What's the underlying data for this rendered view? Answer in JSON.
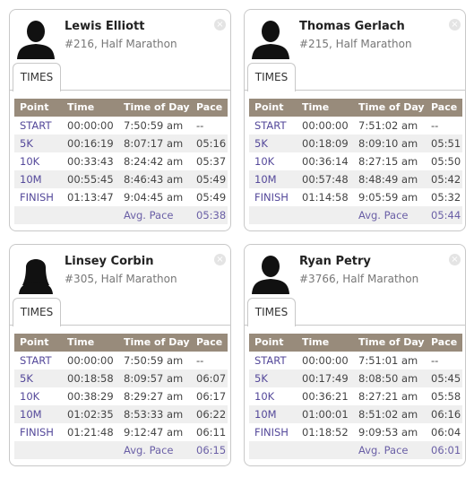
{
  "cards": [
    {
      "name": "Lewis Elliott",
      "event": "#216, Half Marathon",
      "tab": "TIMES",
      "table": {
        "header": [
          "Point",
          "Time",
          "Time of Day",
          "Pace"
        ],
        "rows": [
          [
            "START",
            "00:00:00",
            "7:50:59 am",
            "--"
          ],
          [
            "5K",
            "00:16:19",
            "8:07:17 am",
            "05:16"
          ],
          [
            "10K",
            "00:33:43",
            "8:24:42 am",
            "05:37"
          ],
          [
            "10M",
            "00:55:45",
            "8:46:43 am",
            "05:49"
          ],
          [
            "FINISH",
            "01:13:47",
            "9:04:45 am",
            "05:49"
          ]
        ],
        "footer": {
          "label": "Avg. Pace",
          "value": "05:38"
        }
      }
    },
    {
      "name": "Thomas Gerlach",
      "event": "#215, Half Marathon",
      "tab": "TIMES",
      "table": {
        "header": [
          "Point",
          "Time",
          "Time of Day",
          "Pace"
        ],
        "rows": [
          [
            "START",
            "00:00:00",
            "7:51:02 am",
            "--"
          ],
          [
            "5K",
            "00:18:09",
            "8:09:10 am",
            "05:51"
          ],
          [
            "10K",
            "00:36:14",
            "8:27:15 am",
            "05:50"
          ],
          [
            "10M",
            "00:57:48",
            "8:48:49 am",
            "05:42"
          ],
          [
            "FINISH",
            "01:14:58",
            "9:05:59 am",
            "05:32"
          ]
        ],
        "footer": {
          "label": "Avg. Pace",
          "value": "05:44"
        }
      }
    },
    {
      "name": "Linsey Corbin",
      "event": "#305, Half Marathon",
      "tab": "TIMES",
      "table": {
        "header": [
          "Point",
          "Time",
          "Time of Day",
          "Pace"
        ],
        "rows": [
          [
            "START",
            "00:00:00",
            "7:50:59 am",
            "--"
          ],
          [
            "5K",
            "00:18:58",
            "8:09:57 am",
            "06:07"
          ],
          [
            "10K",
            "00:38:29",
            "8:29:27 am",
            "06:17"
          ],
          [
            "10M",
            "01:02:35",
            "8:53:33 am",
            "06:22"
          ],
          [
            "FINISH",
            "01:21:48",
            "9:12:47 am",
            "06:11"
          ]
        ],
        "footer": {
          "label": "Avg. Pace",
          "value": "06:15"
        }
      }
    },
    {
      "name": "Ryan Petry",
      "event": "#3766, Half Marathon",
      "tab": "TIMES",
      "table": {
        "header": [
          "Point",
          "Time",
          "Time of Day",
          "Pace"
        ],
        "rows": [
          [
            "START",
            "00:00:00",
            "7:51:01 am",
            "--"
          ],
          [
            "5K",
            "00:17:49",
            "8:08:50 am",
            "05:45"
          ],
          [
            "10K",
            "00:36:21",
            "8:27:21 am",
            "05:58"
          ],
          [
            "10M",
            "01:00:01",
            "8:51:02 am",
            "06:16"
          ],
          [
            "FINISH",
            "01:18:52",
            "9:09:53 am",
            "06:04"
          ]
        ],
        "footer": {
          "label": "Avg. Pace",
          "value": "06:01"
        }
      }
    }
  ]
}
